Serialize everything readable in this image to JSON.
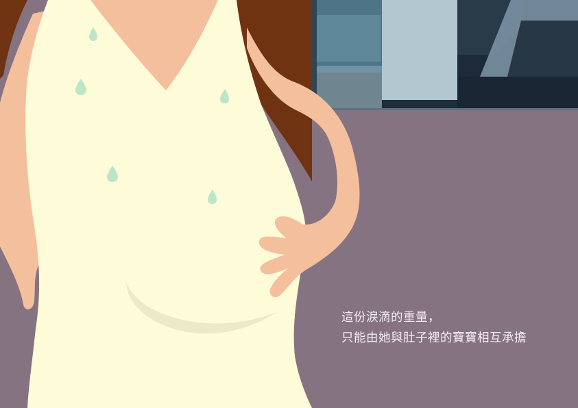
{
  "caption": {
    "line1": "這份淚滴的重量，",
    "line2": "只能由她與肚子裡的寶寶相互承擔"
  },
  "colors": {
    "background": "#857381",
    "dress": "#fdfbd8",
    "skin": "#f3bf9d",
    "hair": "#6f3311",
    "teardrop": "#bde6c8",
    "belly_shadow": "#ece9c9",
    "window_blue": "#587f95",
    "window_light": "#b3c7d0",
    "window_dark": "#1c2a3a",
    "text": "#f4eef3"
  }
}
